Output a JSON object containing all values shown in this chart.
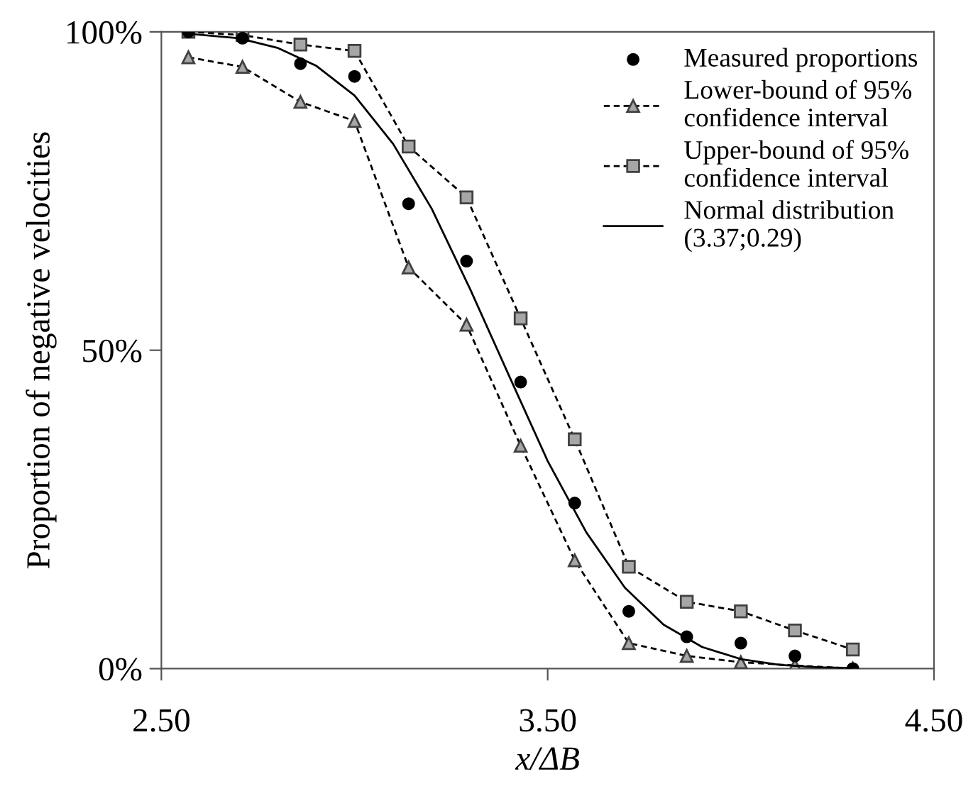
{
  "chart_data": {
    "type": "line",
    "xlabel": "x/ΔB",
    "ylabel": "Proportion of negative velocities",
    "xlim": [
      2.5,
      4.5
    ],
    "xticks": [
      {
        "value": 2.5,
        "label": "2.50"
      },
      {
        "value": 3.5,
        "label": "3.50"
      },
      {
        "value": 4.5,
        "label": "4.50"
      }
    ],
    "ylim": [
      0,
      100
    ],
    "yticks": [
      {
        "value": 0,
        "label": "0%"
      },
      {
        "value": 50,
        "label": "50%"
      },
      {
        "value": 100,
        "label": "100%"
      }
    ],
    "grid": false,
    "legend": "top right",
    "series": [
      {
        "name": "Measured proportions",
        "type": "scatter",
        "marker": "circle",
        "color": "#000000",
        "x": [
          2.57,
          2.71,
          2.86,
          3.0,
          3.14,
          3.29,
          3.43,
          3.57,
          3.71,
          3.86,
          4.0,
          4.14,
          4.29
        ],
        "values": [
          100,
          99,
          95,
          93,
          73,
          64,
          45,
          26,
          9,
          5,
          4,
          2,
          0
        ]
      },
      {
        "name": "Lower-bound of 95%\nconfidence interval",
        "marker": "triangle",
        "line_style": "dashed",
        "color": "#a6a6a6",
        "x": [
          2.57,
          2.71,
          2.86,
          3.0,
          3.14,
          3.29,
          3.43,
          3.57,
          3.71,
          3.86,
          4.0,
          4.14,
          4.29
        ],
        "values": [
          96,
          94.5,
          89,
          86,
          63,
          54,
          35,
          17,
          4,
          2,
          1,
          0.5,
          0
        ]
      },
      {
        "name": "Upper-bound of 95%\nconfidence interval",
        "marker": "square",
        "line_style": "dashed",
        "color": "#a6a6a6",
        "x": [
          2.57,
          2.71,
          2.86,
          3.0,
          3.14,
          3.29,
          3.43,
          3.57,
          3.71,
          3.86,
          4.0,
          4.14,
          4.29
        ],
        "values": [
          100,
          99.5,
          98,
          97,
          82,
          74,
          55,
          36,
          16,
          10.5,
          9,
          6,
          3
        ]
      },
      {
        "name": "Normal distribution\n(3.37;0.29)",
        "marker": "none",
        "line_style": "solid",
        "color": "#000000",
        "x": [
          2.57,
          2.7,
          2.8,
          2.9,
          3.0,
          3.1,
          3.2,
          3.3,
          3.4,
          3.5,
          3.6,
          3.7,
          3.8,
          3.9,
          4.0,
          4.1,
          4.2,
          4.29
        ],
        "values": [
          99.7,
          99.0,
          97.5,
          94.7,
          90.0,
          82.4,
          72.2,
          59.5,
          46.0,
          32.6,
          21.4,
          12.7,
          6.9,
          3.4,
          1.5,
          0.6,
          0.2,
          0.1
        ]
      }
    ]
  }
}
